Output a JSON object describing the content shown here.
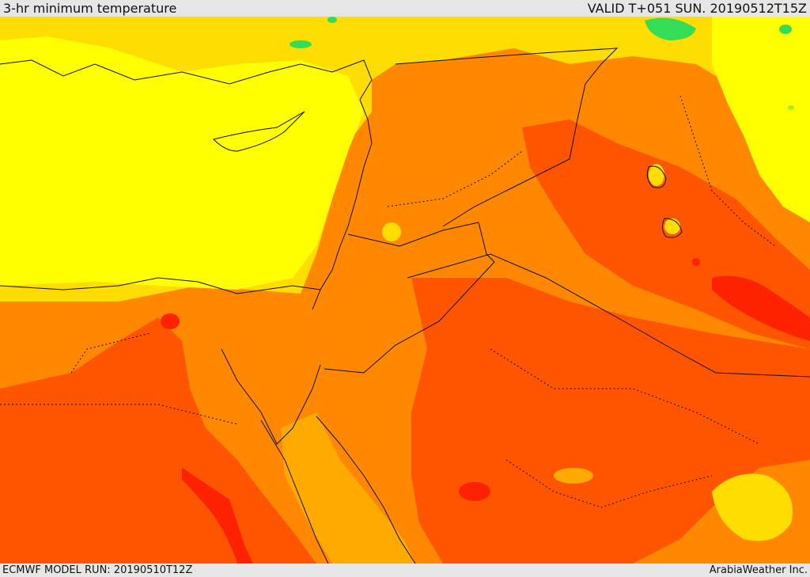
{
  "header": {
    "title": "3-hr minimum temperature",
    "valid_time": "VALID T+051 SUN. 20190512T15Z"
  },
  "footer": {
    "model_run": "ECMWF MODEL RUN: 20190510T12Z",
    "credit": "ArabiaWeather Inc."
  },
  "map": {
    "field": "3-hr minimum temperature",
    "palette": {
      "green": "#33dd55",
      "light_green": "#aaee22",
      "yellow": "#ffff00",
      "gold": "#ffdd00",
      "amber": "#ffaa00",
      "orange": "#ff8800",
      "dark_orange": "#ff5500",
      "red": "#ff2200",
      "boundary": "#111111"
    }
  }
}
